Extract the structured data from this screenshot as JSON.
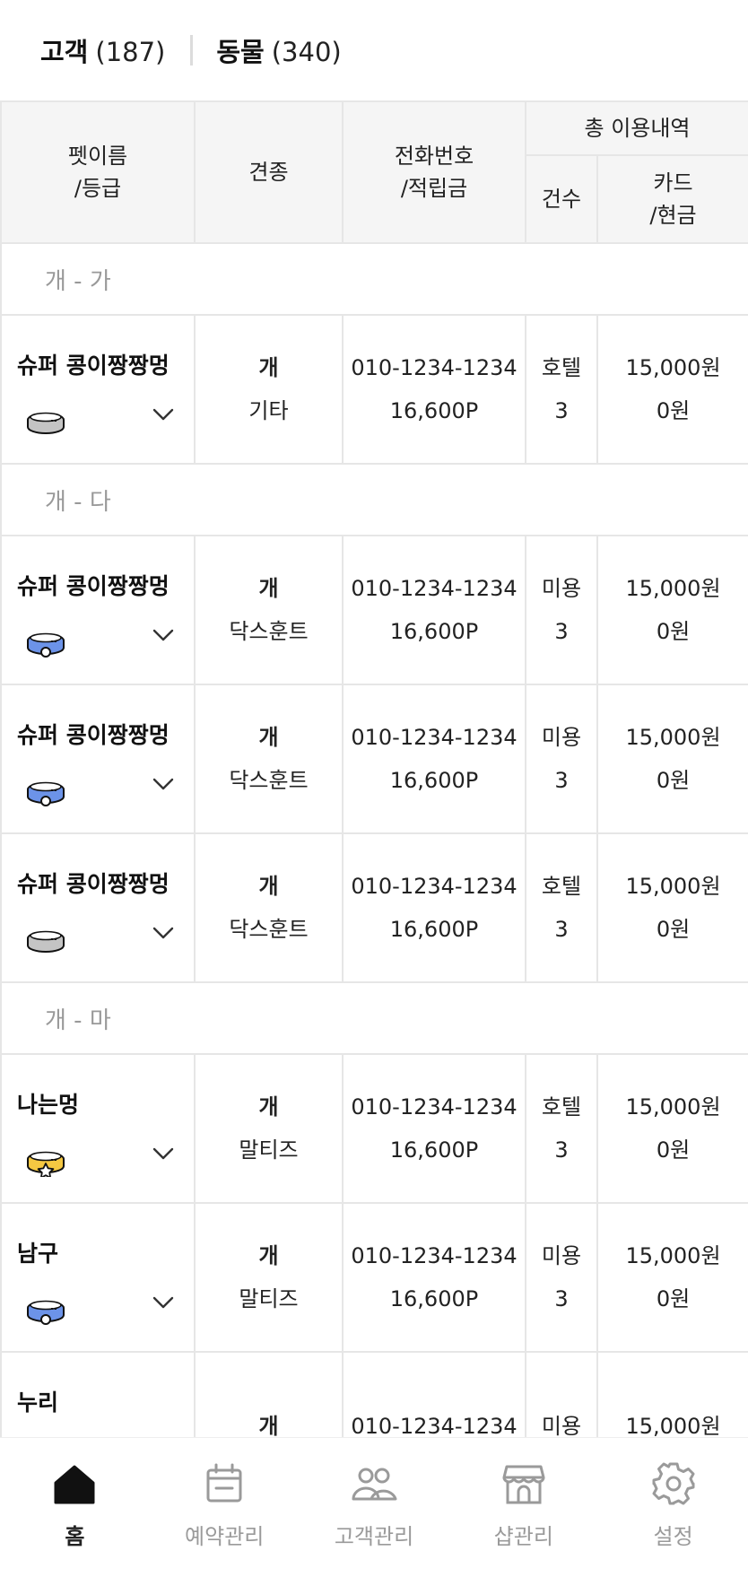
{
  "tabs": [
    {
      "label": "고객",
      "count": "(187)"
    },
    {
      "label": "동물",
      "count": "(340)"
    }
  ],
  "table": {
    "headers": {
      "pet_name": "펫이름\n/등급",
      "breed": "견종",
      "phone": "전화번호\n/적립금",
      "usage_total": "총 이용내역",
      "usage_count": "건수",
      "usage_payment": "카드\n/현금"
    },
    "sections": [
      {
        "label": "개 - 가",
        "rows": [
          {
            "name": "슈퍼 콩이짱짱멍",
            "grade": "silver",
            "species": "개",
            "breed": "기타",
            "phone": "010-1234-1234",
            "points": "16,600P",
            "service": "호텔",
            "count": "3",
            "card": "15,000원",
            "cash": "0원"
          }
        ]
      },
      {
        "label": "개 - 다",
        "rows": [
          {
            "name": "슈퍼 콩이짱짱멍",
            "grade": "blue",
            "species": "개",
            "breed": "닥스훈트",
            "phone": "010-1234-1234",
            "points": "16,600P",
            "service": "미용",
            "count": "3",
            "card": "15,000원",
            "cash": "0원"
          },
          {
            "name": "슈퍼 콩이짱짱멍",
            "grade": "blue",
            "species": "개",
            "breed": "닥스훈트",
            "phone": "010-1234-1234",
            "points": "16,600P",
            "service": "미용",
            "count": "3",
            "card": "15,000원",
            "cash": "0원"
          },
          {
            "name": "슈퍼 콩이짱짱멍",
            "grade": "silver",
            "species": "개",
            "breed": "닥스훈트",
            "phone": "010-1234-1234",
            "points": "16,600P",
            "service": "호텔",
            "count": "3",
            "card": "15,000원",
            "cash": "0원"
          }
        ]
      },
      {
        "label": "개 - 마",
        "rows": [
          {
            "name": "나는멍",
            "grade": "gold",
            "species": "개",
            "breed": "말티즈",
            "phone": "010-1234-1234",
            "points": "16,600P",
            "service": "호텔",
            "count": "3",
            "card": "15,000원",
            "cash": "0원"
          },
          {
            "name": "남구",
            "grade": "blue",
            "species": "개",
            "breed": "말티즈",
            "phone": "010-1234-1234",
            "points": "16,600P",
            "service": "미용",
            "count": "3",
            "card": "15,000원",
            "cash": "0원"
          },
          {
            "name": "누리",
            "grade": "",
            "species": "개",
            "breed": "",
            "phone": "010-1234-1234",
            "points": "",
            "service": "미용",
            "count": "",
            "card": "15,000원",
            "cash": ""
          }
        ]
      }
    ]
  },
  "collar_colors": {
    "silver": "#c4c4c4",
    "blue": "#6c93e8",
    "gold": "#f5c842"
  },
  "bottom_nav": [
    {
      "label": "홈",
      "icon": "home-icon",
      "active": true
    },
    {
      "label": "예약관리",
      "icon": "calendar-icon",
      "active": false
    },
    {
      "label": "고객관리",
      "icon": "people-icon",
      "active": false
    },
    {
      "label": "샵관리",
      "icon": "store-icon",
      "active": false
    },
    {
      "label": "설정",
      "icon": "gear-icon",
      "active": false
    }
  ]
}
